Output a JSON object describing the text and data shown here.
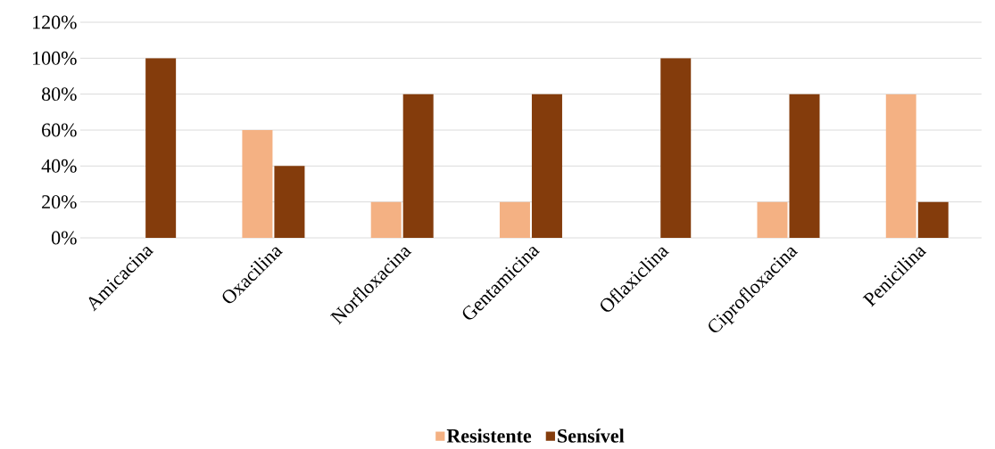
{
  "chart_data": {
    "type": "bar",
    "categories": [
      "Amicacina",
      "Oxacilina",
      "Norfloxacina",
      "Gentamicina",
      "Oflaxiclina",
      "Ciprofloxacina",
      "Penicilina"
    ],
    "series": [
      {
        "name": "Resistente",
        "color": "#f4b183",
        "values": [
          0,
          60,
          20,
          20,
          0,
          20,
          80
        ]
      },
      {
        "name": "Sensível",
        "color": "#843c0c",
        "values": [
          100,
          40,
          80,
          80,
          100,
          80,
          20
        ]
      }
    ],
    "ylim": [
      0,
      120
    ],
    "yticks": [
      {
        "value": 0,
        "label": "0%"
      },
      {
        "value": 20,
        "label": "20%"
      },
      {
        "value": 40,
        "label": "40%"
      },
      {
        "value": 60,
        "label": "60%"
      },
      {
        "value": 80,
        "label": "80%"
      },
      {
        "value": 100,
        "label": "100%"
      },
      {
        "value": 120,
        "label": "120%"
      }
    ],
    "grid": "y",
    "legend": "bottom"
  }
}
